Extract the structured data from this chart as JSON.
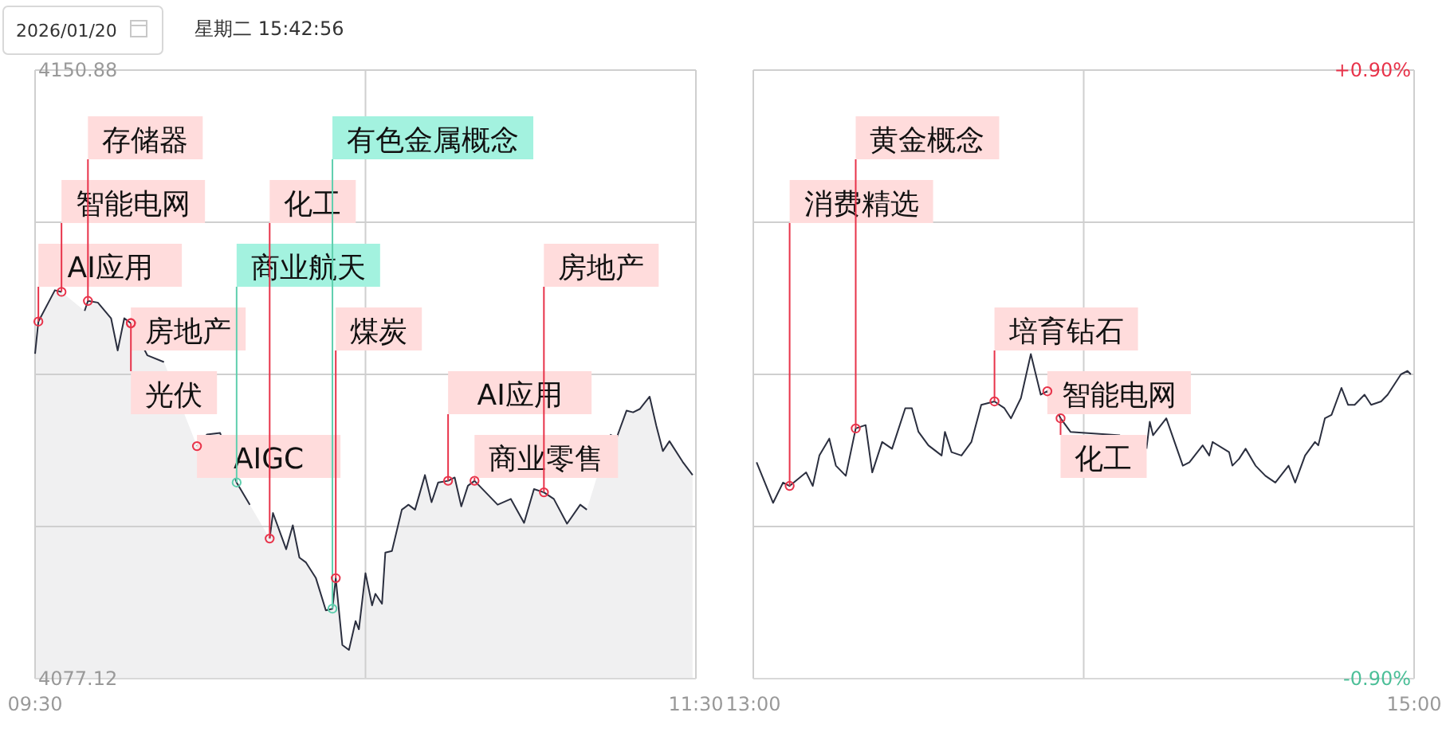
{
  "chart_data": [
    {
      "type": "area",
      "title": "2026/01/20",
      "subtitle": "星期二 15:42:56",
      "x": [
        9.5,
        9.51,
        9.56,
        9.58,
        9.62,
        9.65,
        9.66,
        9.69,
        9.73,
        9.75,
        9.77,
        9.79,
        9.84,
        9.89,
        9.97,
        9.99,
        10.02,
        10.06,
        10.11,
        10.15,
        10.18,
        10.21,
        10.22,
        10.26,
        10.28,
        10.3,
        10.32,
        10.35,
        10.38,
        10.4,
        10.41,
        10.43,
        10.45,
        10.47,
        10.48,
        10.5,
        10.52,
        10.53,
        10.55,
        10.56,
        10.58,
        10.61,
        10.63,
        10.65,
        10.68,
        10.7,
        10.72,
        10.75,
        10.77,
        10.79,
        10.81,
        10.83,
        10.9,
        10.94,
        10.98,
        11.01,
        11.04,
        11.07,
        11.11,
        11.15,
        11.17,
        11.2,
        11.24,
        11.26,
        11.29,
        11.31,
        11.33,
        11.36,
        11.38,
        11.4,
        11.42,
        11.46,
        11.49
      ],
      "series": [
        {
          "color": "#2b2f3f",
          "values": [
            4116.5,
            4120.4,
            4124.2,
            4124.0,
            null,
            4121.7,
            4122.9,
            4122.7,
            4120.8,
            4116.9,
            4120.8,
            4120.2,
            4116.3,
            4115.5,
            null,
            4105.3,
            4106.7,
            4106.9,
            4100.9,
            4098.2,
            null,
            4094.1,
            4097.2,
            4092.8,
            4095.7,
            4091.8,
            4091.2,
            4089.3,
            4085.4,
            4085.6,
            4089.3,
            4081.2,
            4080.6,
            4084.1,
            4083.1,
            4089.9,
            4086.0,
            4087.4,
            4086.2,
            4092.4,
            4092.6,
            4097.6,
            4098.2,
            4097.6,
            4101.8,
            4098.5,
            4100.9,
            4101.1,
            4101.5,
            4098.0,
            4100.5,
            4101.1,
            4098.2,
            4098.9,
            4096.0,
            4100.1,
            4099.7,
            4098.9,
            4095.9,
            4098.2,
            4097.6,
            null,
            4106.7,
            4106.3,
            4109.6,
            4109.4,
            4109.8,
            4111.3,
            4107.8,
            4104.7,
            4105.9,
            4103.4,
            4101.8
          ]
        }
      ],
      "xlim": [
        9.5,
        11.5
      ],
      "ylim": [
        4077.12,
        4150.88
      ],
      "xticks": [
        {
          "value": 9.5,
          "label": "09:30"
        },
        {
          "value": 10.5,
          "label": null
        },
        {
          "value": 11.5,
          "label": "11:30"
        }
      ],
      "yticks": [
        {
          "value": 4150.88,
          "label": "4150.88"
        },
        {
          "value": 4132.44,
          "label": null
        },
        {
          "value": 4114,
          "label": null
        },
        {
          "value": 4095.56,
          "label": null
        },
        {
          "value": 4077.12,
          "label": "4077.12"
        }
      ],
      "grid": true,
      "annotations": [
        {
          "text": "AI应用",
          "x": 9.51,
          "y": 4120.4
        },
        {
          "text": "智能电网",
          "x": 9.58,
          "y": 4124.0
        },
        {
          "text": "存储器",
          "x": 9.66,
          "y": 4122.9
        },
        {
          "text": "房地产",
          "x": 9.79,
          "y": 4120.2
        },
        {
          "text": "光伏",
          "x": 9.79,
          "y": 4120.2
        },
        {
          "text": "AIGC",
          "x": 9.99,
          "y": 4105.3
        },
        {
          "text": "商业航天",
          "x": 10.11,
          "y": 4100.9
        },
        {
          "text": "化工",
          "x": 10.21,
          "y": 4094.1
        },
        {
          "text": "有色金属概念",
          "x": 10.4,
          "y": 4085.6
        },
        {
          "text": "煤炭",
          "x": 10.41,
          "y": 4089.3
        },
        {
          "text": "AI应用",
          "x": 10.75,
          "y": 4101.1
        },
        {
          "text": "商业零售",
          "x": 10.83,
          "y": 4101.1
        },
        {
          "text": "房地产",
          "x": 11.04,
          "y": 4099.7
        }
      ]
    },
    {
      "type": "line",
      "x": [
        13.01,
        13.06,
        13.09,
        13.11,
        13.16,
        13.18,
        13.2,
        13.23,
        13.25,
        13.28,
        13.31,
        13.34,
        13.36,
        13.39,
        13.42,
        13.46,
        13.48,
        13.5,
        13.53,
        13.57,
        13.58,
        13.6,
        13.63,
        13.66,
        13.69,
        13.73,
        13.76,
        13.78,
        13.81,
        13.84,
        13.85,
        13.87,
        13.89,
        13.93,
        13.96,
        14.11,
        14.14,
        14.19,
        14.2,
        14.21,
        14.25,
        14.3,
        14.32,
        14.36,
        14.38,
        14.39,
        14.44,
        14.45,
        14.47,
        14.49,
        14.52,
        14.55,
        14.58,
        14.62,
        14.64,
        14.67,
        14.7,
        14.71,
        14.73,
        14.75,
        14.78,
        14.8,
        14.82,
        14.85,
        14.87,
        14.9,
        14.92,
        14.96,
        14.98,
        14.99
      ],
      "series": [
        {
          "color": "#2b2f3f",
          "values": [
            -0.26,
            -0.38,
            -0.32,
            -0.33,
            -0.29,
            -0.33,
            -0.24,
            -0.19,
            -0.27,
            -0.3,
            -0.16,
            -0.15,
            -0.29,
            -0.2,
            -0.22,
            -0.1,
            -0.1,
            -0.17,
            -0.21,
            -0.24,
            -0.17,
            -0.23,
            -0.24,
            -0.2,
            -0.09,
            -0.08,
            -0.1,
            -0.13,
            -0.07,
            0.06,
            0.02,
            -0.06,
            -0.05,
            -0.13,
            -0.17,
            -0.18,
            null,
            -0.22,
            -0.14,
            -0.18,
            -0.13,
            -0.27,
            -0.26,
            -0.21,
            -0.24,
            -0.2,
            -0.23,
            -0.27,
            -0.25,
            -0.22,
            -0.27,
            -0.3,
            -0.32,
            -0.27,
            -0.32,
            -0.24,
            -0.2,
            -0.21,
            -0.13,
            -0.12,
            -0.04,
            -0.09,
            -0.09,
            -0.06,
            -0.09,
            -0.08,
            -0.06,
            0.0,
            0.01,
            0.0
          ]
        }
      ],
      "xlim": [
        13,
        15
      ],
      "ylim": [
        -0.9,
        0.9
      ],
      "xticks": [
        {
          "value": 13,
          "label": "13:00"
        },
        {
          "value": 14,
          "label": null
        },
        {
          "value": 15,
          "label": "15:00"
        }
      ],
      "yticks": [
        {
          "value": 0.9,
          "label": "+0.90%"
        },
        {
          "value": 0.45,
          "label": null
        },
        {
          "value": 0,
          "label": null
        },
        {
          "value": -0.45,
          "label": null
        },
        {
          "value": -0.9,
          "label": "-0.90%"
        }
      ],
      "grid": true,
      "annotations": [
        {
          "text": "消费精选",
          "x": 13.11,
          "y": -0.33
        },
        {
          "text": "黄金概念",
          "x": 13.31,
          "y": -0.16
        },
        {
          "text": "培育钻石",
          "x": 13.73,
          "y": -0.08
        },
        {
          "text": "智能电网",
          "x": 13.89,
          "y": -0.05
        },
        {
          "text": "化工",
          "x": 13.93,
          "y": -0.13
        }
      ]
    }
  ]
}
